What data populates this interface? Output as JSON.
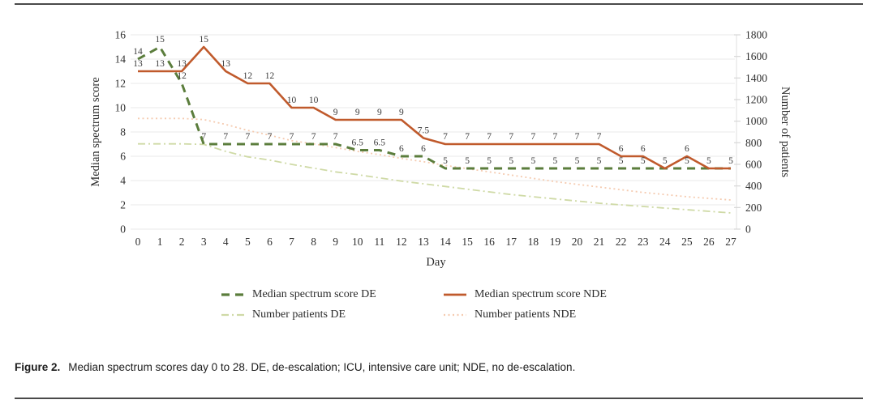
{
  "figure": {
    "caption_label": "Figure 2.",
    "caption_text": "Median spectrum scores day 0 to 28. DE, de-escalation; ICU, intensive care unit; NDE, no de-escalation."
  },
  "chart_data": {
    "type": "line",
    "x": [
      0,
      1,
      2,
      3,
      4,
      5,
      6,
      7,
      8,
      9,
      10,
      11,
      12,
      13,
      14,
      15,
      16,
      17,
      18,
      19,
      20,
      21,
      22,
      23,
      24,
      25,
      26,
      27
    ],
    "xlabel": "Day",
    "axes": {
      "left": {
        "label": "Median spectrum score",
        "lim": [
          0,
          16
        ],
        "ticks": [
          0,
          2,
          4,
          6,
          8,
          10,
          12,
          14,
          16
        ]
      },
      "right": {
        "label": "Number of patients",
        "lim": [
          0,
          1800
        ],
        "ticks": [
          0,
          200,
          400,
          600,
          800,
          1000,
          1200,
          1400,
          1600,
          1800
        ]
      }
    },
    "grid": "horizontal-every-2-left-units",
    "legend_position": "bottom",
    "series": [
      {
        "name": "Median spectrum score DE",
        "axis": "left",
        "color": "#5b7d3c",
        "style": "dashed",
        "show_labels": true,
        "values": [
          14,
          15,
          12,
          7,
          7,
          7,
          7,
          7,
          7,
          7,
          6.5,
          6.5,
          6,
          6,
          5,
          5,
          5,
          5,
          5,
          5,
          5,
          5,
          5,
          5,
          5,
          5,
          5,
          5
        ]
      },
      {
        "name": "Median spectrum score NDE",
        "axis": "left",
        "color": "#c05a2c",
        "style": "solid",
        "show_labels": true,
        "values": [
          13,
          13,
          13,
          15,
          13,
          12,
          12,
          10,
          10,
          9,
          9,
          9,
          9,
          7.5,
          7,
          7,
          7,
          7,
          7,
          7,
          7,
          7,
          6,
          6,
          5,
          6,
          5,
          5
        ]
      },
      {
        "name": "Number patients DE",
        "axis": "right",
        "color": "#cfdaa6",
        "style": "dashdot",
        "show_labels": false,
        "values": [
          790,
          790,
          790,
          785,
          720,
          670,
          640,
          600,
          565,
          530,
          505,
          475,
          445,
          420,
          395,
          370,
          345,
          320,
          300,
          280,
          260,
          240,
          225,
          210,
          195,
          180,
          165,
          150
        ]
      },
      {
        "name": "Number patients NDE",
        "axis": "right",
        "color": "#f5cbb0",
        "style": "dotted",
        "show_labels": false,
        "values": [
          1025,
          1025,
          1025,
          1015,
          970,
          915,
          870,
          820,
          790,
          755,
          720,
          690,
          655,
          625,
          590,
          560,
          530,
          500,
          470,
          440,
          415,
          390,
          365,
          340,
          320,
          300,
          285,
          270
        ]
      }
    ]
  }
}
